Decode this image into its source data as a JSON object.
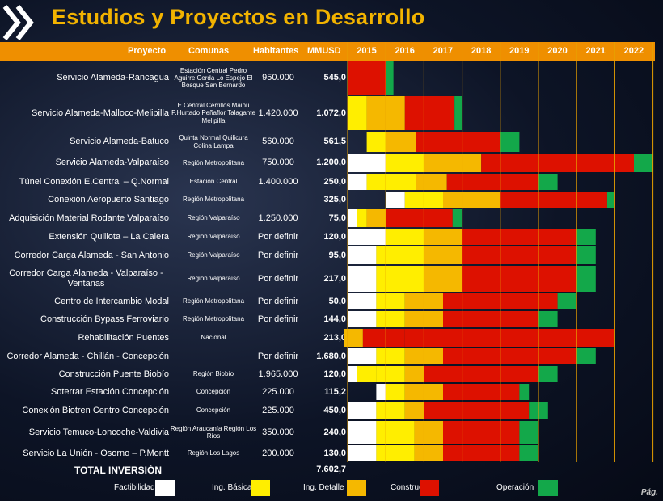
{
  "title": "Estudios y Proyectos en Desarrollo",
  "header": {
    "proyecto": "Proyecto",
    "comunas": "Comunas",
    "habitantes": "Habitantes",
    "mmusd": "MMUSD"
  },
  "colors": {
    "factibilidad": "#ffffff",
    "ing_basica": "#ffee00",
    "ing_detalle": "#f5b800",
    "construccion": "#dd1100",
    "operacion": "#13a84a",
    "header": "#ef8f00",
    "title": "#f2b300"
  },
  "chart_data": {
    "type": "gantt",
    "title": "Estudios y Proyectos en Desarrollo",
    "years": [
      "2015",
      "2016",
      "2017",
      "2018",
      "2019",
      "2020",
      "2021",
      "2022"
    ],
    "phase_legend": [
      {
        "key": "F",
        "label": "Factibilidad"
      },
      {
        "key": "B",
        "label": "Ing. Básica"
      },
      {
        "key": "D",
        "label": "Ing. Detalle"
      },
      {
        "key": "C",
        "label": "Construcción"
      },
      {
        "key": "O",
        "label": "Operación"
      }
    ],
    "rows": [
      {
        "name": "Servicio Alameda-Rancagua",
        "comunas": "Estación Central Pedro Aguirre Cerda Lo Espejo El Bosque San Bernardo",
        "habitantes": "950.000",
        "mmusd": "545,0",
        "phases": [
          {
            "p": "C",
            "s": 2015.0,
            "e": 2016.0
          },
          {
            "p": "O",
            "s": 2016.0,
            "e": 2016.2
          }
        ]
      },
      {
        "name": "Servicio Alameda-Malloco-Melipilla",
        "comunas": "E.Central Cerrillos Maipú P.Hurtado Peñaflor Talagante Melipilla",
        "habitantes": "1.420.000",
        "mmusd": "1.072,0",
        "phases": [
          {
            "p": "B",
            "s": 2015.0,
            "e": 2015.5
          },
          {
            "p": "D",
            "s": 2015.5,
            "e": 2016.5
          },
          {
            "p": "C",
            "s": 2016.5,
            "e": 2017.8
          },
          {
            "p": "O",
            "s": 2017.8,
            "e": 2018.0
          }
        ]
      },
      {
        "name": "Servicio Alameda-Batuco",
        "comunas": "Quinta Normal Quilicura Colina Lampa",
        "habitantes": "560.000",
        "mmusd": "561,5",
        "phases": [
          {
            "p": "B",
            "s": 2015.5,
            "e": 2016.0
          },
          {
            "p": "D",
            "s": 2016.0,
            "e": 2016.8
          },
          {
            "p": "C",
            "s": 2016.8,
            "e": 2019.0
          },
          {
            "p": "O",
            "s": 2019.0,
            "e": 2019.5
          }
        ]
      },
      {
        "name": "Servicio Alameda-Valparaíso",
        "comunas": "Región Metropolitana",
        "habitantes": "750.000",
        "mmusd": "1.200,0",
        "phases": [
          {
            "p": "F",
            "s": 2015.0,
            "e": 2016.0
          },
          {
            "p": "B",
            "s": 2016.0,
            "e": 2017.0
          },
          {
            "p": "D",
            "s": 2017.0,
            "e": 2018.5
          },
          {
            "p": "C",
            "s": 2018.5,
            "e": 2022.5
          },
          {
            "p": "O",
            "s": 2022.5,
            "e": 2023.0
          }
        ]
      },
      {
        "name": "Túnel Conexión E.Central – Q.Normal",
        "comunas": "Estación Central",
        "habitantes": "1.400.000",
        "mmusd": "250,0",
        "phases": [
          {
            "p": "F",
            "s": 2015.0,
            "e": 2015.5
          },
          {
            "p": "B",
            "s": 2015.5,
            "e": 2016.8
          },
          {
            "p": "D",
            "s": 2016.8,
            "e": 2017.6
          },
          {
            "p": "C",
            "s": 2017.6,
            "e": 2020.0
          },
          {
            "p": "O",
            "s": 2020.0,
            "e": 2020.5
          }
        ]
      },
      {
        "name": "Conexión Aeropuerto Santiago",
        "comunas": "Región Metropolitana",
        "habitantes": "",
        "mmusd": "325,0",
        "phases": [
          {
            "p": "F",
            "s": 2016.0,
            "e": 2016.5
          },
          {
            "p": "B",
            "s": 2016.5,
            "e": 2017.5
          },
          {
            "p": "D",
            "s": 2017.5,
            "e": 2019.0
          },
          {
            "p": "C",
            "s": 2019.0,
            "e": 2021.8
          },
          {
            "p": "O",
            "s": 2021.8,
            "e": 2022.0
          }
        ]
      },
      {
        "name": "Adquisición Material Rodante Valparaíso",
        "comunas": "Región Valparaíso",
        "habitantes": "1.250.000",
        "mmusd": "75,0",
        "phases": [
          {
            "p": "F",
            "s": 2015.0,
            "e": 2015.25
          },
          {
            "p": "B",
            "s": 2015.25,
            "e": 2015.5
          },
          {
            "p": "D",
            "s": 2015.5,
            "e": 2016.0
          },
          {
            "p": "C",
            "s": 2016.0,
            "e": 2017.75
          },
          {
            "p": "O",
            "s": 2017.75,
            "e": 2018.0
          }
        ]
      },
      {
        "name": "Extensión Quillota – La Calera",
        "comunas": "Región Valparaíso",
        "habitantes": "Por definir",
        "mmusd": "120,0",
        "phases": [
          {
            "p": "F",
            "s": 2015.0,
            "e": 2016.0
          },
          {
            "p": "B",
            "s": 2016.0,
            "e": 2017.0
          },
          {
            "p": "D",
            "s": 2017.0,
            "e": 2018.0
          },
          {
            "p": "C",
            "s": 2018.0,
            "e": 2021.0
          },
          {
            "p": "O",
            "s": 2021.0,
            "e": 2021.5
          }
        ]
      },
      {
        "name": "Corredor Carga Alameda - San Antonio",
        "comunas": "Región Valparaíso",
        "habitantes": "Por definir",
        "mmusd": "95,0",
        "phases": [
          {
            "p": "F",
            "s": 2015.0,
            "e": 2015.75
          },
          {
            "p": "B",
            "s": 2015.75,
            "e": 2017.0
          },
          {
            "p": "D",
            "s": 2017.0,
            "e": 2018.0
          },
          {
            "p": "C",
            "s": 2018.0,
            "e": 2021.0
          },
          {
            "p": "O",
            "s": 2021.0,
            "e": 2021.5
          }
        ]
      },
      {
        "name": "Corredor Carga Alameda - Valparaíso - Ventanas",
        "comunas": "Región Valparaíso",
        "habitantes": "Por definir",
        "mmusd": "217,0",
        "phases": [
          {
            "p": "F",
            "s": 2015.0,
            "e": 2015.75
          },
          {
            "p": "B",
            "s": 2015.75,
            "e": 2017.0
          },
          {
            "p": "D",
            "s": 2017.0,
            "e": 2018.0
          },
          {
            "p": "C",
            "s": 2018.0,
            "e": 2021.0
          },
          {
            "p": "O",
            "s": 2021.0,
            "e": 2021.5
          }
        ]
      },
      {
        "name": "Centro de Intercambio Modal",
        "comunas": "Región Metropolitana",
        "habitantes": "Por definir",
        "mmusd": "50,0",
        "phases": [
          {
            "p": "F",
            "s": 2015.0,
            "e": 2015.75
          },
          {
            "p": "B",
            "s": 2015.75,
            "e": 2016.5
          },
          {
            "p": "D",
            "s": 2016.5,
            "e": 2017.5
          },
          {
            "p": "C",
            "s": 2017.5,
            "e": 2020.5
          },
          {
            "p": "O",
            "s": 2020.5,
            "e": 2021.0
          }
        ]
      },
      {
        "name": "Construcción Bypass Ferroviario",
        "comunas": "Región Metropolitana",
        "habitantes": "Por definir",
        "mmusd": "144,0",
        "phases": [
          {
            "p": "F",
            "s": 2015.0,
            "e": 2015.75
          },
          {
            "p": "B",
            "s": 2015.75,
            "e": 2016.5
          },
          {
            "p": "D",
            "s": 2016.5,
            "e": 2017.5
          },
          {
            "p": "C",
            "s": 2017.5,
            "e": 2020.0
          },
          {
            "p": "O",
            "s": 2020.0,
            "e": 2020.5
          }
        ]
      },
      {
        "name": "Rehabilitación Puentes",
        "comunas": "Nacional",
        "habitantes": "",
        "mmusd": "213,0",
        "phases": [
          {
            "p": "D",
            "s": 2014.9,
            "e": 2015.4
          },
          {
            "p": "C",
            "s": 2015.4,
            "e": 2016.5
          },
          {
            "p": "C",
            "s": 2016.5,
            "e": 2022.0
          }
        ]
      },
      {
        "name": "Corredor Alameda - Chillán - Concepción",
        "comunas": "",
        "habitantes": "Por definir",
        "mmusd": "1.680,0",
        "phases": [
          {
            "p": "F",
            "s": 2015.0,
            "e": 2015.75
          },
          {
            "p": "B",
            "s": 2015.75,
            "e": 2016.5
          },
          {
            "p": "D",
            "s": 2016.5,
            "e": 2017.5
          },
          {
            "p": "C",
            "s": 2017.5,
            "e": 2021.0
          },
          {
            "p": "O",
            "s": 2021.0,
            "e": 2021.5
          }
        ]
      },
      {
        "name": "Construcción Puente Biobío",
        "comunas": "Región Biobío",
        "habitantes": "1.965.000",
        "mmusd": "120,0",
        "phases": [
          {
            "p": "F",
            "s": 2015.0,
            "e": 2015.25
          },
          {
            "p": "B",
            "s": 2015.25,
            "e": 2015.75
          },
          {
            "p": "B",
            "s": 2015.75,
            "e": 2016.5
          },
          {
            "p": "D",
            "s": 2016.5,
            "e": 2017.0
          },
          {
            "p": "C",
            "s": 2017.0,
            "e": 2020.0
          },
          {
            "p": "O",
            "s": 2020.0,
            "e": 2020.5
          }
        ]
      },
      {
        "name": "Soterrar Estación Concepción",
        "comunas": "Concepción",
        "habitantes": "225.000",
        "mmusd": "115,2",
        "phases": [
          {
            "p": "F",
            "s": 2015.75,
            "e": 2016.0
          },
          {
            "p": "B",
            "s": 2016.0,
            "e": 2016.5
          },
          {
            "p": "D",
            "s": 2016.5,
            "e": 2017.5
          },
          {
            "p": "C",
            "s": 2017.5,
            "e": 2019.5
          },
          {
            "p": "O",
            "s": 2019.5,
            "e": 2019.75
          }
        ]
      },
      {
        "name": "Conexión Biotren Centro Concepción",
        "comunas": "Concepción",
        "habitantes": "225.000",
        "mmusd": "450,0",
        "phases": [
          {
            "p": "F",
            "s": 2015.0,
            "e": 2015.75
          },
          {
            "p": "B",
            "s": 2015.75,
            "e": 2016.5
          },
          {
            "p": "D",
            "s": 2016.5,
            "e": 2017.0
          },
          {
            "p": "C",
            "s": 2017.0,
            "e": 2019.75
          },
          {
            "p": "O",
            "s": 2019.75,
            "e": 2020.25
          }
        ]
      },
      {
        "name": "Servicio Temuco-Loncoche-Valdivia",
        "comunas": "Región Araucanía Región Los Ríos",
        "habitantes": "350.000",
        "mmusd": "240,0",
        "phases": [
          {
            "p": "F",
            "s": 2015.0,
            "e": 2015.75
          },
          {
            "p": "B",
            "s": 2015.75,
            "e": 2016.75
          },
          {
            "p": "D",
            "s": 2016.75,
            "e": 2017.5
          },
          {
            "p": "C",
            "s": 2017.5,
            "e": 2019.5
          },
          {
            "p": "O",
            "s": 2019.5,
            "e": 2020.0
          }
        ]
      },
      {
        "name": "Servicio La Unión - Osorno – P.Montt",
        "comunas": "Región Los Lagos",
        "habitantes": "200.000",
        "mmusd": "130,0",
        "phases": [
          {
            "p": "F",
            "s": 2015.0,
            "e": 2015.75
          },
          {
            "p": "B",
            "s": 2015.75,
            "e": 2016.75
          },
          {
            "p": "D",
            "s": 2016.75,
            "e": 2017.5
          },
          {
            "p": "C",
            "s": 2017.5,
            "e": 2019.5
          },
          {
            "p": "O",
            "s": 2019.5,
            "e": 2020.0
          }
        ]
      }
    ]
  },
  "total": {
    "label": "TOTAL INVERSIÓN",
    "value": "7.602,7"
  },
  "legend": {
    "factibilidad": "Factibilidad",
    "ing_basica": "Ing. Básica",
    "ing_detalle": "Ing. Detalle",
    "construccion": "Construcción",
    "operacion": "Operación"
  },
  "page_label": "Pág."
}
